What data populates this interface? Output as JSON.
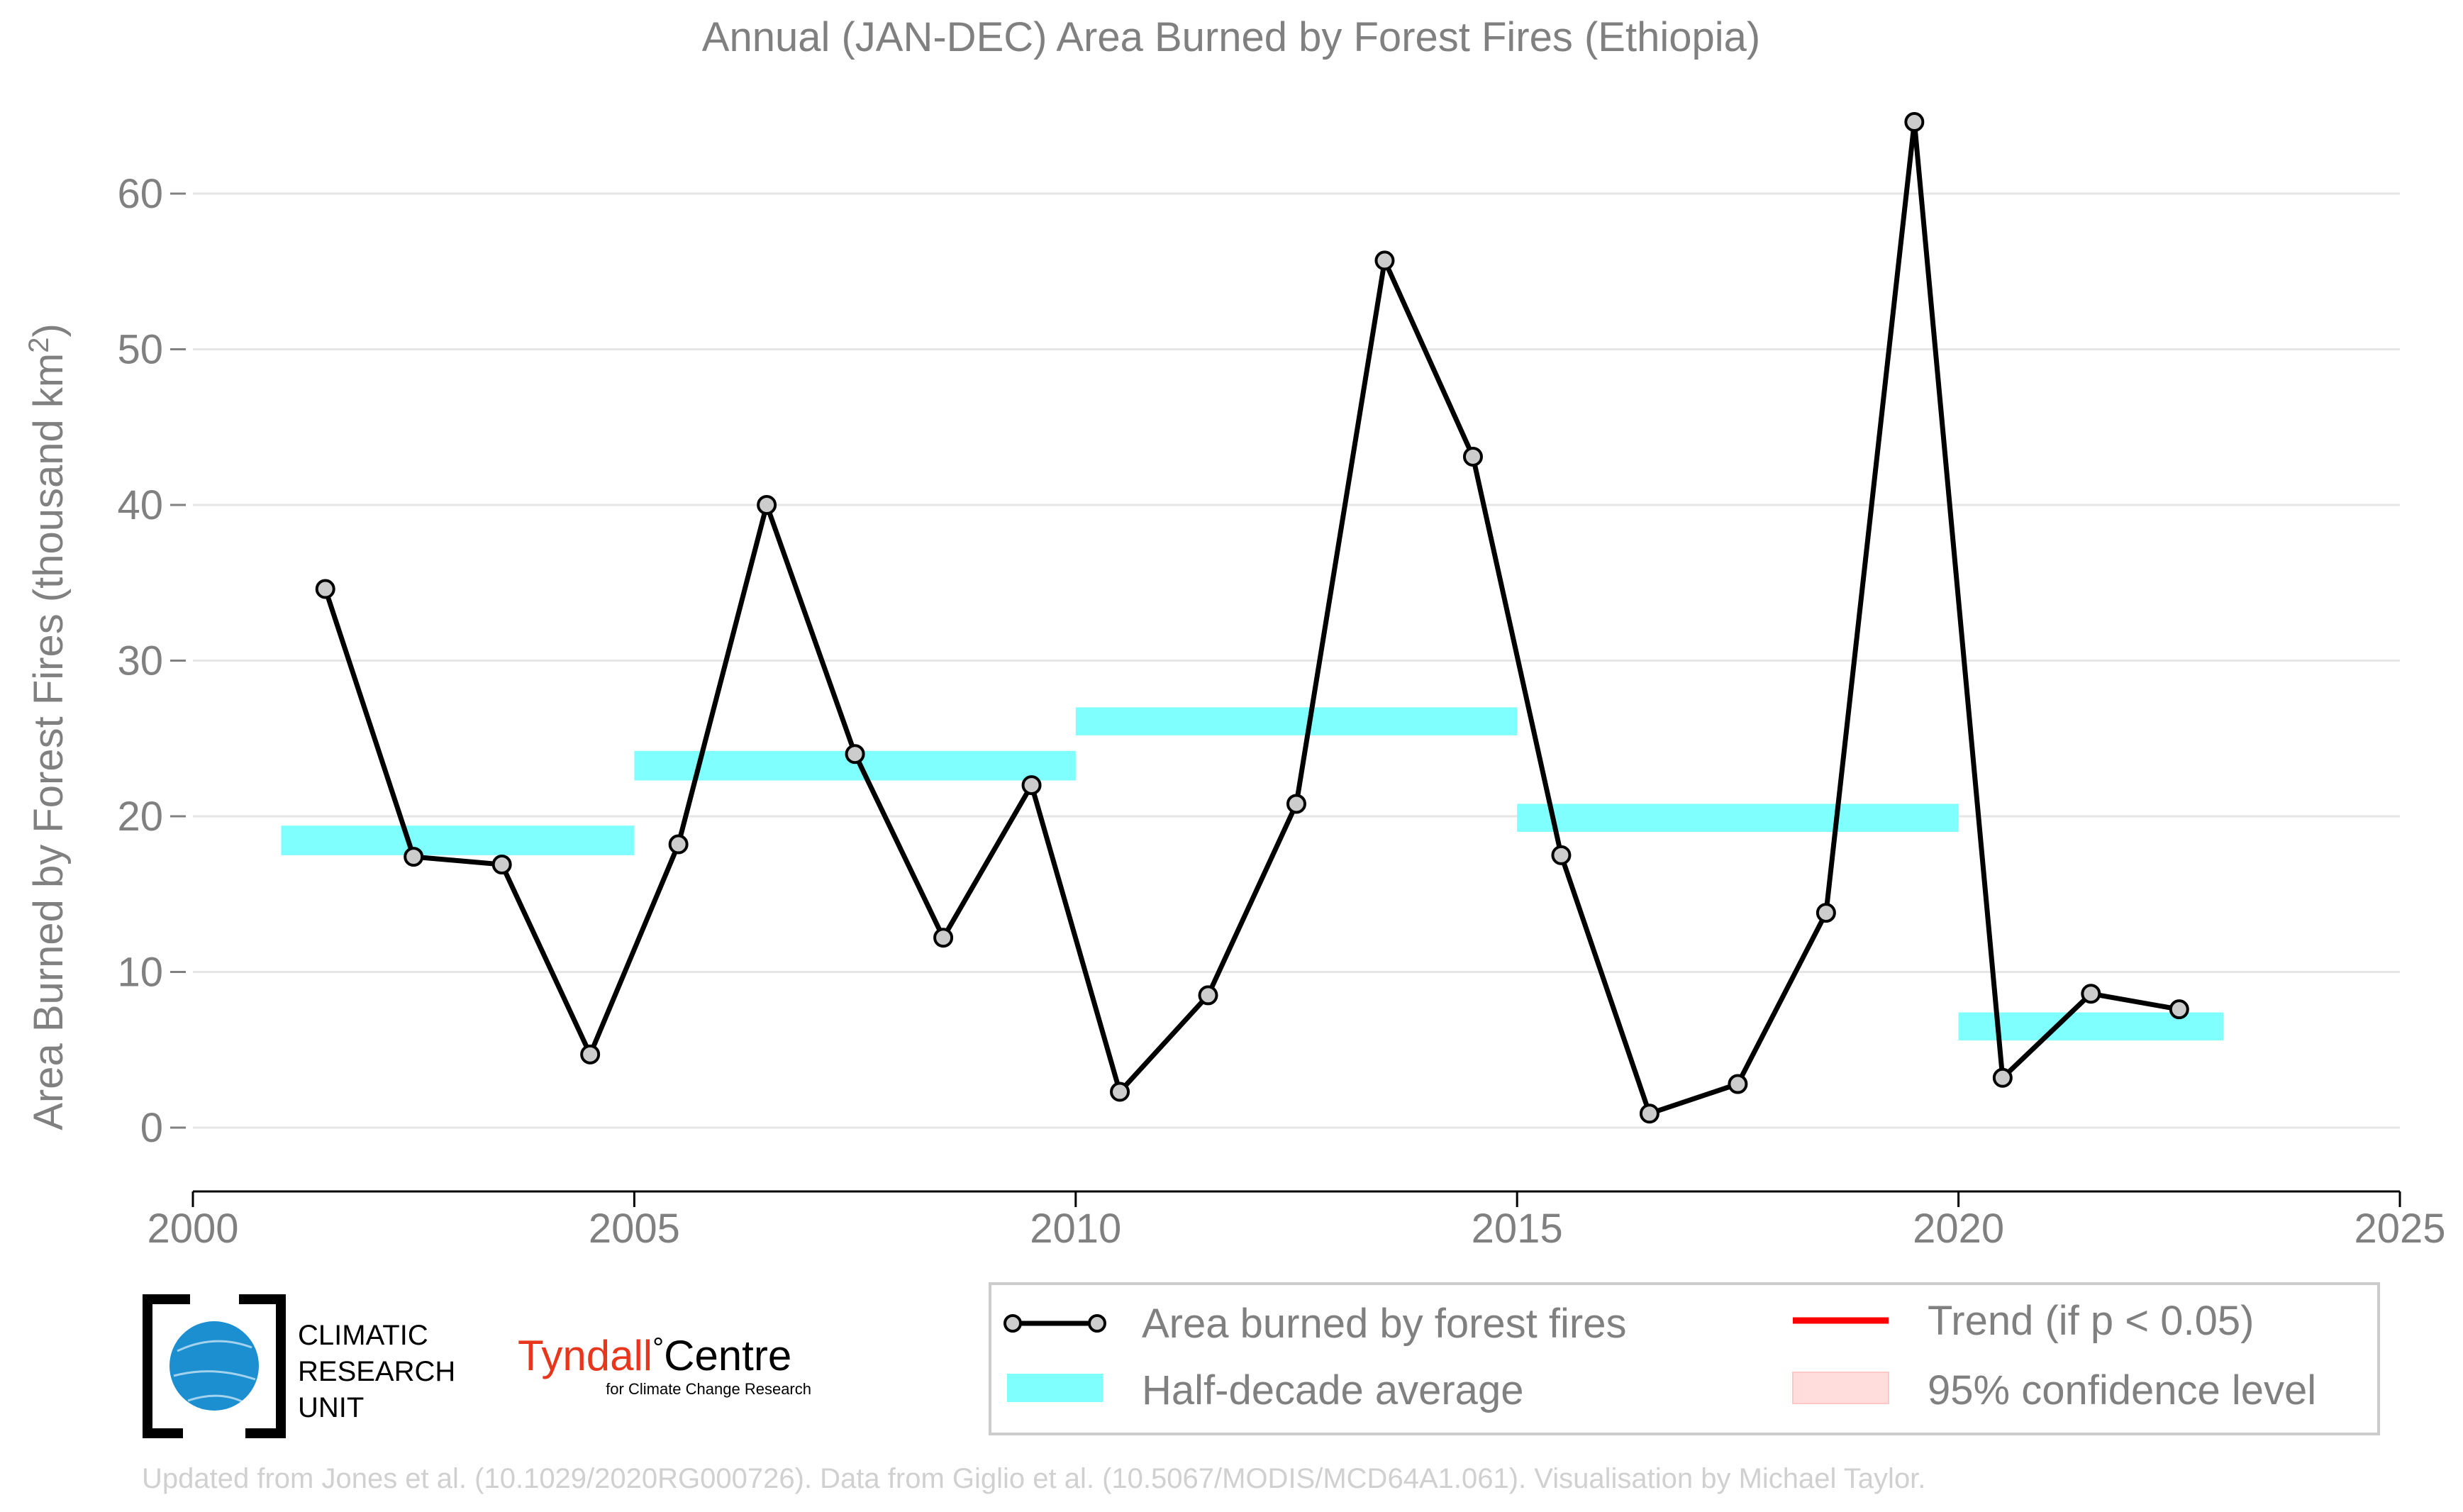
{
  "chart_data": {
    "type": "line",
    "title": "Annual (JAN-DEC) Area Burned by Forest Fires (Ethiopia)",
    "ylabel": "Area Burned by Forest Fires (thousand km²)",
    "xlabel": "",
    "xlim": [
      2000,
      2025
    ],
    "ylim": [
      -4.3,
      66
    ],
    "xticks": [
      "2000",
      "2005",
      "2010",
      "2015",
      "2020",
      "2025"
    ],
    "yticks": [
      "0",
      "10",
      "20",
      "30",
      "40",
      "50",
      "60"
    ],
    "grid": "horizontal",
    "series": [
      {
        "name": "Area burned by forest fires",
        "color": "#000000",
        "marker_fill": "#cccccc",
        "x": [
          2001.5,
          2002.5,
          2003.5,
          2004.5,
          2005.5,
          2006.5,
          2007.5,
          2008.5,
          2009.5,
          2010.5,
          2011.5,
          2012.5,
          2013.5,
          2014.5,
          2015.5,
          2016.5,
          2017.5,
          2018.5,
          2019.5,
          2020.5,
          2021.5,
          2022.5
        ],
        "y": [
          34.6,
          17.4,
          16.9,
          4.7,
          18.2,
          40.0,
          24.0,
          12.2,
          22.0,
          2.3,
          8.5,
          20.8,
          55.7,
          43.1,
          17.5,
          0.9,
          2.8,
          13.8,
          64.6,
          3.2,
          8.6,
          7.6
        ]
      }
    ],
    "half_decade_average": {
      "name": "Half-decade average",
      "color": "#80ffff",
      "segments": [
        {
          "x_start": 2001,
          "x_end": 2005,
          "y_low": 17.5,
          "y_high": 19.4
        },
        {
          "x_start": 2005,
          "x_end": 2010,
          "y_low": 22.3,
          "y_high": 24.2
        },
        {
          "x_start": 2010,
          "x_end": 2015,
          "y_low": 25.2,
          "y_high": 27.0
        },
        {
          "x_start": 2015,
          "x_end": 2020,
          "y_low": 19.0,
          "y_high": 20.8
        },
        {
          "x_start": 2020,
          "x_end": 2023,
          "y_low": 5.6,
          "y_high": 7.4
        }
      ]
    },
    "legend": {
      "placement": "bottom-right",
      "items": [
        {
          "label": "Area burned by forest fires",
          "kind": "line-marker",
          "color": "#000000"
        },
        {
          "label": "Trend (if p < 0.05)",
          "kind": "line",
          "color": "#ff0000"
        },
        {
          "label": "Half-decade average",
          "kind": "band",
          "color": "#80ffff"
        },
        {
          "label": "95% confidence level",
          "kind": "band",
          "color": "#ffdddd"
        }
      ]
    }
  },
  "logos": {
    "cru_line1": "CLIMATIC",
    "cru_line2": "RESEARCH",
    "cru_line3": "UNIT",
    "tyndall_main": "Tyndall",
    "tyndall_degree": "°",
    "tyndall_centre": "Centre",
    "tyndall_sub": "for Climate Change Research"
  },
  "credit": "Updated from Jones et al. (10.1029/2020RG000726). Data from Giglio et al. (10.5067/MODIS/MCD64A1.061). Visualisation by Michael Taylor.",
  "colors": {
    "text_gray": "#808080",
    "grid": "#e6e6e6",
    "credit": "#d0d0d0",
    "cru_blue": "#1b8fd0",
    "tyndall_red": "#e8361c"
  }
}
